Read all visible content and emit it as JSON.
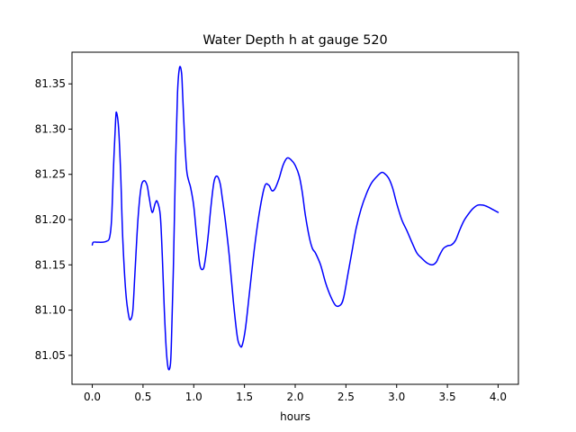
{
  "chart_data": {
    "type": "line",
    "title": "Water Depth h at gauge 520",
    "xlabel": "hours",
    "ylabel": "",
    "xlim": [
      -0.2,
      4.2
    ],
    "ylim": [
      81.018,
      81.385
    ],
    "grid": false,
    "legend": "none",
    "xticks": [
      0.0,
      0.5,
      1.0,
      1.5,
      2.0,
      2.5,
      3.0,
      3.5,
      4.0
    ],
    "xtick_labels": [
      "0.0",
      "0.5",
      "1.0",
      "1.5",
      "2.0",
      "2.5",
      "3.0",
      "3.5",
      "4.0"
    ],
    "yticks": [
      81.05,
      81.1,
      81.15,
      81.2,
      81.25,
      81.3,
      81.35
    ],
    "ytick_labels": [
      "81.05",
      "81.10",
      "81.15",
      "81.20",
      "81.25",
      "81.30",
      "81.35"
    ],
    "series": [
      {
        "name": "",
        "color": "#0000ff",
        "x": [
          0.0,
          0.01,
          0.05,
          0.1,
          0.14,
          0.17,
          0.19,
          0.21,
          0.23,
          0.24,
          0.26,
          0.28,
          0.3,
          0.33,
          0.36,
          0.38,
          0.4,
          0.42,
          0.45,
          0.48,
          0.51,
          0.54,
          0.56,
          0.59,
          0.62,
          0.64,
          0.67,
          0.69,
          0.71,
          0.73,
          0.75,
          0.77,
          0.78,
          0.8,
          0.82,
          0.84,
          0.86,
          0.88,
          0.89,
          0.91,
          0.93,
          0.95,
          0.97,
          1.0,
          1.03,
          1.06,
          1.09,
          1.11,
          1.14,
          1.17,
          1.2,
          1.23,
          1.26,
          1.28,
          1.31,
          1.35,
          1.39,
          1.43,
          1.46,
          1.48,
          1.51,
          1.55,
          1.6,
          1.65,
          1.7,
          1.74,
          1.77,
          1.8,
          1.84,
          1.88,
          1.92,
          1.96,
          2.0,
          2.04,
          2.07,
          2.1,
          2.14,
          2.17,
          2.2,
          2.25,
          2.3,
          2.35,
          2.4,
          2.45,
          2.48,
          2.52,
          2.56,
          2.6,
          2.65,
          2.7,
          2.75,
          2.8,
          2.85,
          2.88,
          2.92,
          2.96,
          3.0,
          3.05,
          3.1,
          3.15,
          3.2,
          3.25,
          3.3,
          3.35,
          3.39,
          3.42,
          3.46,
          3.5,
          3.54,
          3.58,
          3.62,
          3.66,
          3.7,
          3.75,
          3.8,
          3.85,
          3.9,
          3.95,
          4.0
        ],
        "y": [
          81.172,
          81.175,
          81.175,
          81.175,
          81.176,
          81.18,
          81.2,
          81.26,
          81.31,
          81.318,
          81.3,
          81.25,
          81.18,
          81.12,
          81.093,
          81.09,
          81.1,
          81.14,
          81.2,
          81.235,
          81.243,
          81.238,
          81.225,
          81.208,
          81.218,
          81.22,
          81.205,
          81.16,
          81.1,
          81.055,
          81.035,
          81.04,
          81.065,
          81.15,
          81.26,
          81.34,
          81.368,
          81.362,
          81.34,
          81.29,
          81.255,
          81.243,
          81.235,
          81.215,
          81.18,
          81.15,
          81.145,
          81.153,
          81.18,
          81.215,
          81.242,
          81.248,
          81.24,
          81.225,
          81.2,
          81.16,
          81.11,
          81.07,
          81.06,
          81.062,
          81.08,
          81.12,
          81.17,
          81.21,
          81.237,
          81.238,
          81.232,
          81.234,
          81.245,
          81.26,
          81.268,
          81.266,
          81.26,
          81.248,
          81.23,
          81.205,
          81.18,
          81.168,
          81.163,
          81.15,
          81.13,
          81.115,
          81.105,
          81.106,
          81.115,
          81.14,
          81.165,
          81.19,
          81.212,
          81.228,
          81.24,
          81.247,
          81.252,
          81.251,
          81.246,
          81.235,
          81.218,
          81.2,
          81.188,
          81.175,
          81.163,
          81.157,
          81.152,
          81.15,
          81.153,
          81.16,
          81.168,
          81.171,
          81.172,
          81.177,
          81.188,
          81.198,
          81.205,
          81.212,
          81.216,
          81.216,
          81.214,
          81.211,
          81.208
        ]
      }
    ]
  }
}
